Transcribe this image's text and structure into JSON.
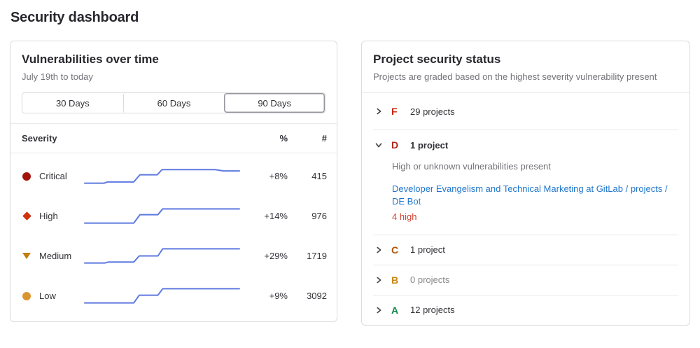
{
  "page": {
    "title": "Security dashboard"
  },
  "colors": {
    "text_primary": "#333238",
    "text_secondary": "#737278",
    "panel_border": "#dcdcde",
    "divider": "#e9e9ec",
    "link": "#1f75cb"
  },
  "left_panel": {
    "title": "Vulnerabilities over time",
    "subtitle": "July 19th to today",
    "range_buttons": [
      "30 Days",
      "60 Days",
      "90 Days"
    ],
    "selected_range": "90 Days",
    "table": {
      "headers": [
        "Severity",
        "%",
        "#"
      ]
    },
    "sparkline_color": "#5e79e0",
    "rows": [
      {
        "label": "Critical",
        "icon": "severity-critical-icon",
        "color": "#a2140b",
        "percent": "+8%",
        "count": "415",
        "sparkline": [
          [
            1,
            31
          ],
          [
            29,
            31
          ],
          [
            34,
            29
          ],
          [
            72,
            29
          ],
          [
            81,
            18
          ],
          [
            106,
            18
          ],
          [
            113,
            10
          ],
          [
            190,
            10
          ],
          [
            202,
            12
          ],
          [
            225,
            12
          ]
        ]
      },
      {
        "label": "High",
        "icon": "severity-high-icon",
        "color": "#d2310e",
        "percent": "+14%",
        "count": "976",
        "sparkline": [
          [
            1,
            31
          ],
          [
            72,
            31
          ],
          [
            81,
            18
          ],
          [
            107,
            18
          ],
          [
            114,
            9
          ],
          [
            225,
            9
          ]
        ]
      },
      {
        "label": "Medium",
        "icon": "severity-medium-icon",
        "color": "#c17d10",
        "percent": "+29%",
        "count": "1719",
        "sparkline": [
          [
            1,
            31
          ],
          [
            30,
            31
          ],
          [
            35,
            29.5
          ],
          [
            72,
            29.5
          ],
          [
            80,
            20
          ],
          [
            107,
            20
          ],
          [
            114,
            9
          ],
          [
            225,
            9
          ]
        ]
      },
      {
        "label": "Low",
        "icon": "severity-low-icon",
        "color": "#d99530",
        "percent": "+9%",
        "count": "3092",
        "sparkline": [
          [
            1,
            31
          ],
          [
            72,
            31
          ],
          [
            80,
            19
          ],
          [
            107,
            19
          ],
          [
            114,
            9
          ],
          [
            225,
            9
          ]
        ]
      }
    ]
  },
  "right_panel": {
    "title": "Project security status",
    "subtitle": "Projects are graded based on the highest severity vulnerability present",
    "grades": [
      {
        "letter": "F",
        "color": "#c2280e",
        "count_label": "29 projects",
        "expanded": false
      },
      {
        "letter": "D",
        "color": "#b3271a",
        "count_label": "1 project",
        "expanded": true,
        "description": "High or unknown vulnerabilities present",
        "project_link": "Developer Evangelism and Technical Marketing at GitLab / projects / DE Bot",
        "vulnerability_summary": "4 high",
        "summary_color": "#cd4435"
      },
      {
        "letter": "C",
        "color": "#b25300",
        "count_label": "1 project",
        "expanded": false
      },
      {
        "letter": "B",
        "color": "#c98712",
        "count_label": "0 projects",
        "expanded": false
      },
      {
        "letter": "A",
        "color": "#108548",
        "count_label": "12 projects",
        "expanded": false
      }
    ]
  }
}
